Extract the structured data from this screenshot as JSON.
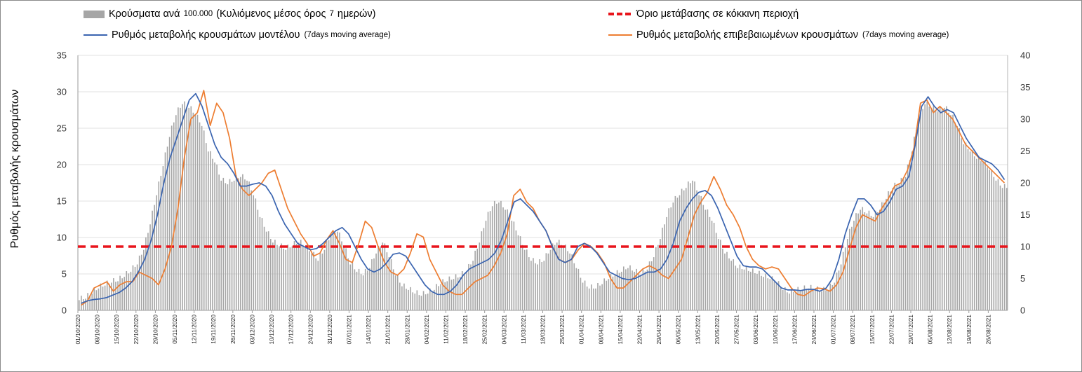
{
  "chart_data": {
    "type": "bar",
    "legend": {
      "bars": {
        "label": "Κρούσματα ανά",
        "number": "100.000",
        "rest": "(Κυλιόμενος μέσος όρος",
        "seven": "7",
        "tail": "ημερών)"
      },
      "threshold": {
        "label": "Όριο μετάβασης σε κόκκινη περιοχή"
      },
      "model": {
        "label": "Ρυθμός μεταβολής κρουσμάτων μοντέλου",
        "note": "(7days moving average)"
      },
      "confirmed": {
        "label": "Ρυθμός μεταβολής επιβεβαιωμένων κρουσμάτων",
        "note": "(7days moving average)"
      },
      "placement": "top"
    },
    "ylabel": "Ρυθμός μεταβολής κρουσμάτων",
    "ylim_left": [
      0,
      35
    ],
    "ylim_right": [
      0,
      40
    ],
    "yticks_left": [
      "0",
      "5",
      "10",
      "15",
      "20",
      "25",
      "30",
      "35"
    ],
    "yticks_right": [
      "0",
      "5",
      "10",
      "15",
      "20",
      "25",
      "30",
      "35",
      "40"
    ],
    "threshold_right_axis": 10,
    "grid": true,
    "x_start": "01/10/2020",
    "x_end": "02/09/2021",
    "x_tick_labels": [
      "01/10/2020",
      "08/10/2020",
      "15/10/2020",
      "22/10/2020",
      "29/10/2020",
      "05/11/2020",
      "12/11/2020",
      "19/11/2020",
      "26/11/2020",
      "03/12/2020",
      "10/12/2020",
      "17/12/2020",
      "24/12/2020",
      "31/12/2020",
      "07/01/2021",
      "14/01/2021",
      "21/01/2021",
      "28/01/2021",
      "04/02/2021",
      "11/02/2021",
      "18/02/2021",
      "25/02/2021",
      "04/03/2021",
      "11/03/2021",
      "18/03/2021",
      "25/03/2021",
      "01/04/2021",
      "08/04/2021",
      "15/04/2021",
      "22/04/2021",
      "29/04/2021",
      "06/05/2021",
      "13/05/2021",
      "20/05/2021",
      "27/05/2021",
      "03/06/2021",
      "10/06/2021",
      "17/06/2021",
      "24/06/2021",
      "01/07/2021",
      "08/07/2021",
      "15/07/2021",
      "22/07/2021",
      "29/07/2021",
      "05/08/2021",
      "12/08/2021",
      "19/08/2021",
      "26/08/2021"
    ],
    "cases_per_100k_weekly": [
      1.6,
      1.8,
      2.5,
      3.2,
      3.6,
      4.0,
      4.2,
      4.8,
      5.5,
      6.5,
      8.5,
      12.0,
      16.0,
      20.0,
      24.0,
      27.0,
      28.5,
      28.0,
      27.0,
      25.5,
      22.0,
      20.5,
      18.0,
      17.5,
      18.0,
      18.5,
      18.0,
      16.0,
      13.0,
      11.0,
      9.5,
      9.0,
      8.5,
      9.0,
      9.5,
      9.0,
      8.0,
      7.0,
      8.5,
      10.5,
      11.0,
      9.0,
      6.5,
      5.5,
      5.0,
      6.0,
      8.0,
      9.5,
      7.5,
      5.0,
      3.5,
      3.0,
      2.5,
      2.2,
      2.5,
      3.0,
      3.8,
      4.2,
      4.5,
      4.8,
      5.5,
      7.0,
      9.5,
      12.5,
      14.5,
      15.0,
      14.0,
      12.5,
      10.5,
      8.5,
      7.0,
      6.5,
      7.0,
      8.5,
      9.5,
      9.0,
      8.0,
      6.0,
      4.0,
      3.2,
      3.2,
      3.8,
      4.5,
      5.0,
      5.5,
      6.0,
      5.5,
      5.0,
      5.8,
      7.5,
      10.0,
      13.0,
      15.0,
      16.0,
      17.0,
      18.0,
      16.0,
      14.0,
      12.5,
      10.0,
      8.0,
      7.0,
      6.0,
      5.8,
      5.5,
      5.2,
      4.8,
      4.5,
      4.0,
      3.0,
      2.5,
      2.8,
      3.0,
      3.2,
      3.0,
      2.8,
      3.0,
      4.0,
      6.5,
      10.0,
      12.5,
      14.0,
      13.5,
      13.0,
      14.0,
      15.5,
      17.0,
      17.5,
      18.5,
      22.0,
      26.5,
      28.5,
      28.0,
      27.5,
      28.0,
      27.0,
      25.5,
      23.0,
      22.0,
      21.0,
      20.5,
      19.5,
      18.0,
      17.0
    ],
    "series": [
      {
        "name": "Ρυθμός μεταβολής κρουσμάτων μοντέλου",
        "axis": "right",
        "color": "#3a64b0",
        "values": [
          1.1,
          1.5,
          1.7,
          1.8,
          2.0,
          2.4,
          2.8,
          3.5,
          4.5,
          6.0,
          8.0,
          11.0,
          15.0,
          20.0,
          24.0,
          27.0,
          30.0,
          33.0,
          34.0,
          32.0,
          29.0,
          26.0,
          24.0,
          23.0,
          21.5,
          19.5,
          19.5,
          19.8,
          20.0,
          19.5,
          18.0,
          15.5,
          13.5,
          12.0,
          10.5,
          10.0,
          9.5,
          9.7,
          10.5,
          11.5,
          12.5,
          13.0,
          12.0,
          10.0,
          8.0,
          6.5,
          6.0,
          6.5,
          7.5,
          8.8,
          9.0,
          8.5,
          7.0,
          5.5,
          4.0,
          3.0,
          2.5,
          2.5,
          3.0,
          4.0,
          5.5,
          6.5,
          7.0,
          7.5,
          8.0,
          9.0,
          11.0,
          14.0,
          17.0,
          17.5,
          16.5,
          15.5,
          14.0,
          12.5,
          10.0,
          8.0,
          7.5,
          8.0,
          10.0,
          10.5,
          10.0,
          9.0,
          7.5,
          6.0,
          5.5,
          5.0,
          4.8,
          5.0,
          5.5,
          6.0,
          6.0,
          6.5,
          8.0,
          10.5,
          14.0,
          16.0,
          17.5,
          18.5,
          18.8,
          18.0,
          16.0,
          13.5,
          11.0,
          8.5,
          7.0,
          6.8,
          6.8,
          6.5,
          5.5,
          4.5,
          3.5,
          3.2,
          3.2,
          3.1,
          3.3,
          3.3,
          3.0,
          3.5,
          5.0,
          8.0,
          12.0,
          15.0,
          17.5,
          17.5,
          16.5,
          15.0,
          15.5,
          17.0,
          19.0,
          19.5,
          21.0,
          26.0,
          32.0,
          33.5,
          32.0,
          31.0,
          31.5,
          31.0,
          29.0,
          27.0,
          25.5,
          24.0,
          23.5,
          23.0,
          22.0,
          20.5
        ]
      },
      {
        "name": "Ρυθμός μεταβολής επιβεβαιωμένων κρουσμάτων",
        "axis": "right",
        "color": "#ed7d31",
        "values": [
          0.8,
          1.5,
          3.5,
          4.0,
          4.5,
          3.0,
          4.0,
          4.5,
          4.5,
          6.0,
          5.5,
          5.0,
          4.0,
          6.5,
          10.0,
          16.0,
          24.0,
          30.0,
          31.0,
          34.5,
          29.0,
          32.5,
          31.0,
          27.0,
          21.0,
          19.0,
          18.0,
          19.0,
          20.0,
          21.5,
          22.0,
          19.0,
          16.0,
          14.0,
          12.0,
          10.5,
          8.5,
          9.0,
          11.0,
          12.5,
          10.5,
          8.0,
          7.5,
          10.5,
          14.0,
          13.0,
          10.0,
          7.5,
          6.0,
          5.5,
          6.5,
          9.0,
          12.0,
          11.5,
          8.0,
          6.0,
          4.0,
          3.0,
          2.5,
          2.5,
          3.5,
          4.5,
          5.0,
          5.5,
          7.0,
          9.0,
          12.0,
          18.0,
          19.0,
          17.0,
          16.0,
          14.0,
          12.5,
          10.0,
          8.0,
          7.5,
          8.0,
          9.5,
          10.5,
          10.0,
          9.0,
          7.5,
          5.0,
          3.5,
          3.5,
          4.5,
          5.5,
          6.5,
          7.0,
          6.5,
          5.5,
          5.0,
          6.5,
          8.0,
          11.5,
          15.0,
          17.0,
          18.5,
          21.0,
          19.0,
          16.5,
          15.0,
          13.0,
          10.0,
          8.0,
          7.0,
          6.5,
          6.8,
          6.5,
          5.0,
          3.5,
          2.5,
          2.3,
          3.0,
          3.5,
          3.4,
          3.0,
          4.0,
          6.0,
          9.5,
          13.0,
          15.0,
          14.5,
          14.0,
          16.0,
          17.5,
          19.5,
          20.0,
          22.0,
          25.5,
          32.5,
          33.0,
          31.0,
          32.0,
          31.0,
          30.0,
          28.0,
          26.0,
          25.0,
          24.0,
          23.0,
          22.0,
          21.0,
          20.0
        ]
      },
      {
        "name": "Όριο μετάβασης σε κόκκινη περιοχή",
        "axis": "right",
        "color": "#e8141b",
        "values": [
          10
        ]
      }
    ]
  }
}
